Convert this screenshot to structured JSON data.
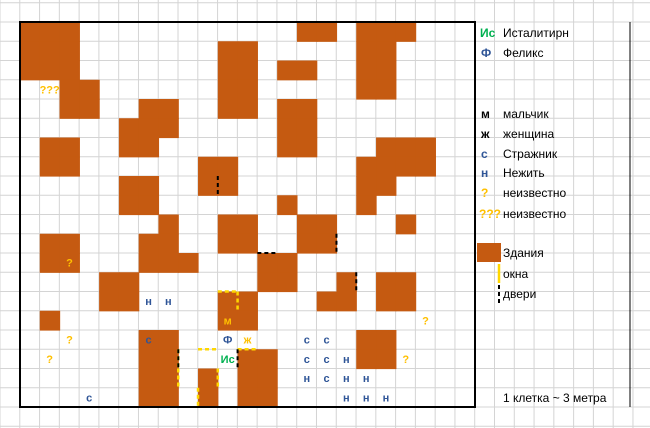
{
  "colors": {
    "building": "#c55a11",
    "grid_line": "#d4d4d4",
    "frame": "#000000",
    "unknown": "#ffc000",
    "guard_undead": "#2f5597",
    "girl": "#7f7f7f",
    "male_marker": "#ffc000",
    "female_marker": "#ffc000",
    "isstalitirn": "#00b050",
    "feliks": "#2f5597",
    "window": "#ffd700",
    "door": "#000000"
  },
  "map": {
    "cols": 23,
    "rows": 20,
    "buildings": [
      [
        0,
        0
      ],
      [
        1,
        0
      ],
      [
        2,
        0
      ],
      [
        14,
        0
      ],
      [
        15,
        0
      ],
      [
        17,
        0
      ],
      [
        18,
        0
      ],
      [
        19,
        0
      ],
      [
        0,
        1
      ],
      [
        1,
        1
      ],
      [
        2,
        1
      ],
      [
        10,
        1
      ],
      [
        11,
        1
      ],
      [
        17,
        1
      ],
      [
        18,
        1
      ],
      [
        0,
        2
      ],
      [
        1,
        2
      ],
      [
        2,
        2
      ],
      [
        10,
        2
      ],
      [
        11,
        2
      ],
      [
        13,
        2
      ],
      [
        14,
        2
      ],
      [
        17,
        2
      ],
      [
        18,
        2
      ],
      [
        2,
        3
      ],
      [
        3,
        3
      ],
      [
        10,
        3
      ],
      [
        11,
        3
      ],
      [
        17,
        3
      ],
      [
        18,
        3
      ],
      [
        2,
        4
      ],
      [
        3,
        4
      ],
      [
        6,
        4
      ],
      [
        7,
        4
      ],
      [
        10,
        4
      ],
      [
        11,
        4
      ],
      [
        13,
        4
      ],
      [
        14,
        4
      ],
      [
        5,
        5
      ],
      [
        6,
        5
      ],
      [
        7,
        5
      ],
      [
        13,
        5
      ],
      [
        14,
        5
      ],
      [
        1,
        6
      ],
      [
        2,
        6
      ],
      [
        5,
        6
      ],
      [
        6,
        6
      ],
      [
        13,
        6
      ],
      [
        14,
        6
      ],
      [
        18,
        6
      ],
      [
        19,
        6
      ],
      [
        20,
        6
      ],
      [
        1,
        7
      ],
      [
        2,
        7
      ],
      [
        9,
        7
      ],
      [
        10,
        7
      ],
      [
        17,
        7
      ],
      [
        18,
        7
      ],
      [
        19,
        7
      ],
      [
        20,
        7
      ],
      [
        5,
        8
      ],
      [
        6,
        8
      ],
      [
        9,
        8
      ],
      [
        10,
        8
      ],
      [
        17,
        8
      ],
      [
        18,
        8
      ],
      [
        5,
        9
      ],
      [
        6,
        9
      ],
      [
        13,
        9
      ],
      [
        17,
        9
      ],
      [
        7,
        10
      ],
      [
        10,
        10
      ],
      [
        11,
        10
      ],
      [
        14,
        10
      ],
      [
        15,
        10
      ],
      [
        19,
        10
      ],
      [
        1,
        11
      ],
      [
        2,
        11
      ],
      [
        6,
        11
      ],
      [
        7,
        11
      ],
      [
        10,
        11
      ],
      [
        11,
        11
      ],
      [
        14,
        11
      ],
      [
        15,
        11
      ],
      [
        1,
        12
      ],
      [
        2,
        12
      ],
      [
        6,
        12
      ],
      [
        7,
        12
      ],
      [
        8,
        12
      ],
      [
        12,
        12
      ],
      [
        13,
        12
      ],
      [
        4,
        13
      ],
      [
        5,
        13
      ],
      [
        12,
        13
      ],
      [
        13,
        13
      ],
      [
        16,
        13
      ],
      [
        18,
        13
      ],
      [
        19,
        13
      ],
      [
        4,
        14
      ],
      [
        5,
        14
      ],
      [
        10,
        14
      ],
      [
        11,
        14
      ],
      [
        15,
        14
      ],
      [
        16,
        14
      ],
      [
        18,
        14
      ],
      [
        19,
        14
      ],
      [
        1,
        15
      ],
      [
        10,
        15
      ],
      [
        11,
        15
      ],
      [
        6,
        16
      ],
      [
        7,
        16
      ],
      [
        17,
        16
      ],
      [
        18,
        16
      ],
      [
        6,
        17
      ],
      [
        7,
        17
      ],
      [
        11,
        17
      ],
      [
        12,
        17
      ],
      [
        17,
        17
      ],
      [
        18,
        17
      ],
      [
        6,
        18
      ],
      [
        7,
        18
      ],
      [
        9,
        18
      ],
      [
        11,
        18
      ],
      [
        12,
        18
      ],
      [
        6,
        19
      ],
      [
        7,
        19
      ],
      [
        9,
        19
      ],
      [
        11,
        19
      ],
      [
        12,
        19
      ]
    ],
    "labels": [
      {
        "col": 1,
        "row": 3,
        "text": "???",
        "kind": "unknown"
      },
      {
        "col": 2,
        "row": 12,
        "text": "?",
        "kind": "unknown"
      },
      {
        "col": 2,
        "row": 16,
        "text": "?",
        "kind": "unknown"
      },
      {
        "col": 1,
        "row": 17,
        "text": "?",
        "kind": "unknown"
      },
      {
        "col": 20,
        "row": 15,
        "text": "?",
        "kind": "unknown"
      },
      {
        "col": 19,
        "row": 17,
        "text": "?",
        "kind": "unknown"
      },
      {
        "col": 10,
        "row": 15,
        "text": "м",
        "kind": "male_marker"
      },
      {
        "col": 10,
        "row": 16,
        "text": "Ф",
        "kind": "feliks"
      },
      {
        "col": 11,
        "row": 16,
        "text": "ж",
        "kind": "female_marker"
      },
      {
        "col": 10,
        "row": 17,
        "text": "Ис",
        "kind": "isstalitirn"
      },
      {
        "col": 6,
        "row": 14,
        "text": "н",
        "kind": "guard_undead"
      },
      {
        "col": 7,
        "row": 14,
        "text": "н",
        "kind": "guard_undead"
      },
      {
        "col": 6,
        "row": 16,
        "text": "с",
        "kind": "guard_undead"
      },
      {
        "col": 14,
        "row": 16,
        "text": "с",
        "kind": "guard_undead"
      },
      {
        "col": 15,
        "row": 16,
        "text": "с",
        "kind": "guard_undead"
      },
      {
        "col": 14,
        "row": 17,
        "text": "с",
        "kind": "guard_undead"
      },
      {
        "col": 15,
        "row": 17,
        "text": "с",
        "kind": "guard_undead"
      },
      {
        "col": 16,
        "row": 17,
        "text": "н",
        "kind": "guard_undead"
      },
      {
        "col": 14,
        "row": 18,
        "text": "н",
        "kind": "guard_undead"
      },
      {
        "col": 15,
        "row": 18,
        "text": "с",
        "kind": "guard_undead"
      },
      {
        "col": 16,
        "row": 18,
        "text": "н",
        "kind": "guard_undead"
      },
      {
        "col": 17,
        "row": 18,
        "text": "н",
        "kind": "guard_undead"
      },
      {
        "col": 3,
        "row": 19,
        "text": "с",
        "kind": "guard_undead"
      },
      {
        "col": 16,
        "row": 19,
        "text": "н",
        "kind": "guard_undead"
      },
      {
        "col": 17,
        "row": 19,
        "text": "н",
        "kind": "guard_undead"
      },
      {
        "col": 18,
        "row": 19,
        "text": "н",
        "kind": "guard_undead"
      }
    ],
    "windows": [
      [
        10,
        14,
        "h"
      ],
      [
        11,
        14,
        "v"
      ],
      [
        8,
        17,
        "v"
      ],
      [
        8,
        18,
        "v"
      ],
      [
        9,
        17,
        "h"
      ],
      [
        10,
        18,
        "v"
      ],
      [
        11,
        17,
        "h"
      ],
      [
        9,
        19,
        "v"
      ]
    ],
    "doors": [
      [
        10,
        8,
        "v"
      ],
      [
        12,
        12,
        "h"
      ],
      [
        16,
        11,
        "v"
      ],
      [
        17,
        13,
        "v"
      ],
      [
        8,
        17,
        "v"
      ],
      [
        11,
        17,
        "v"
      ]
    ]
  },
  "legend": {
    "isstalitirn": {
      "symbol": "Ис",
      "label": "Исталитирн"
    },
    "feliks": {
      "symbol": "Ф",
      "label": "Феликс"
    },
    "boy": {
      "symbol": "м",
      "label": "мальчик"
    },
    "woman": {
      "symbol": "ж",
      "label": "женщина"
    },
    "guard": {
      "symbol": "с",
      "label": "Стражник"
    },
    "undead": {
      "symbol": "н",
      "label": "Нежить"
    },
    "unknown1": {
      "symbol": "?",
      "label": "неизвестно"
    },
    "unknown3": {
      "symbol": "???",
      "label": "неизвестно"
    },
    "buildings": {
      "label": "Здания"
    },
    "windows": {
      "label": "окна"
    },
    "doors": {
      "label": "двери"
    },
    "scale": "1 клетка ~ 3 метра"
  }
}
